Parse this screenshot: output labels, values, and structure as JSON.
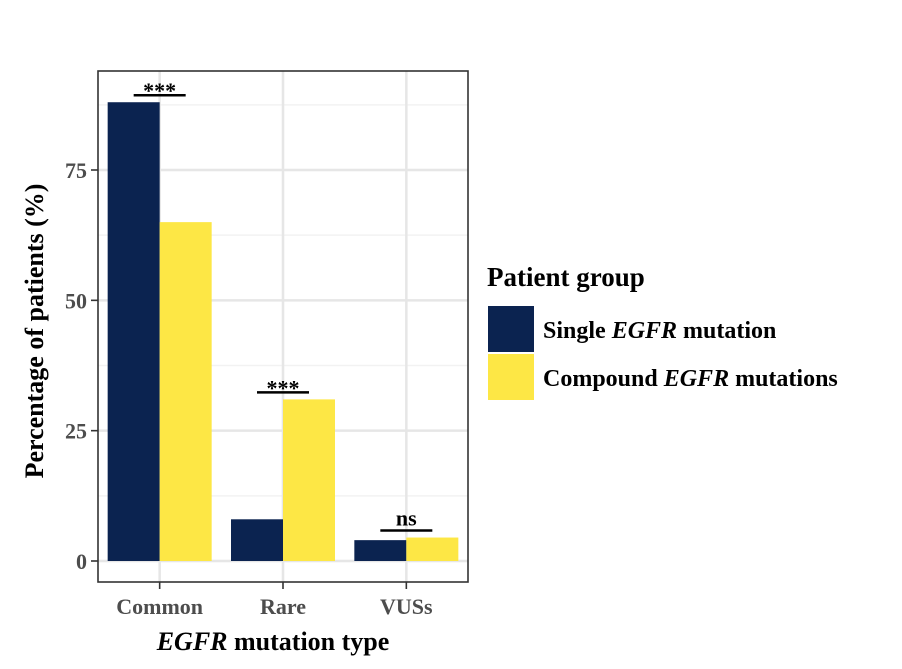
{
  "chart_data": {
    "type": "bar",
    "categories": [
      "Common",
      "Rare",
      "VUSs"
    ],
    "series": [
      {
        "name": "Single EGFR mutation",
        "values": [
          88,
          8,
          4
        ],
        "color": "#0b2350"
      },
      {
        "name": "Compound EGFR mutations",
        "values": [
          65,
          31,
          4.5
        ],
        "color": "#fde745"
      }
    ],
    "ylim": [
      0,
      92
    ],
    "yticks": [
      0,
      25,
      50,
      75
    ],
    "ylabel": "Percentage of patients (%)",
    "xlabel": {
      "italic": "EGFR",
      "rest": " mutation type"
    },
    "significance": [
      "***",
      "***",
      "ns"
    ],
    "legend": {
      "title": "Patient group",
      "entries": [
        {
          "pre": "Single ",
          "italic": "EGFR",
          "post": " mutation"
        },
        {
          "pre": "Compound ",
          "italic": "EGFR",
          "post": " mutations"
        }
      ]
    },
    "grid": true
  }
}
